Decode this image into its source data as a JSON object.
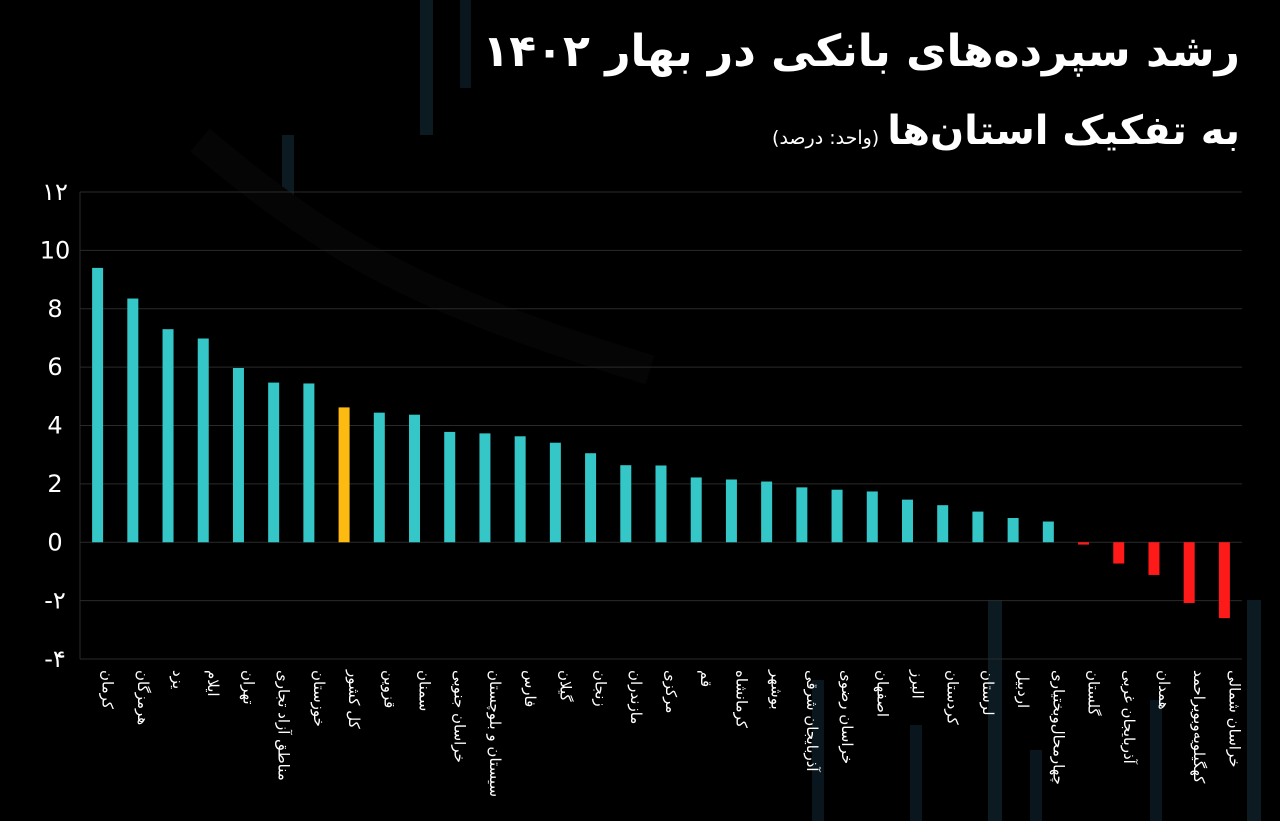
{
  "title": "رشد سپرده‌های بانکی در بهار ۱۴۰۲",
  "subtitle": "به تفکیک استان‌ها",
  "unit_note": "(واحد: درصد)",
  "colors": {
    "positive": "#35c7c7",
    "total": "#fdbb11",
    "negative": "#ff1a1a",
    "grid": "#2a2a2a",
    "text": "#ffffff"
  },
  "chart_data": {
    "type": "bar",
    "title": "رشد سپرده‌های بانکی در بهار ۱۴۰۲",
    "subtitle": "به تفکیک استان‌ها",
    "xlabel": "",
    "ylabel": "",
    "ylim": [
      -4,
      12
    ],
    "yticks": [
      {
        "value": 12,
        "label": "۱۲"
      },
      {
        "value": 10,
        "label": "10"
      },
      {
        "value": 8,
        "label": "8"
      },
      {
        "value": 6,
        "label": "6"
      },
      {
        "value": 4,
        "label": "4"
      },
      {
        "value": 2,
        "label": "2"
      },
      {
        "value": 0,
        "label": "0"
      },
      {
        "value": -2,
        "label": "-۲"
      },
      {
        "value": -4,
        "label": "-۴"
      }
    ],
    "grid": true,
    "legend": "none",
    "highlight_category": "کل کشور",
    "categories": [
      "کرمان",
      "هرمزگان",
      "یزد",
      "ایلام",
      "تهران",
      "مناطق آزاد تجاری",
      "خوزستان",
      "کل کشور",
      "قزوین",
      "سمنان",
      "خراسان جنوبی",
      "سیستان و بلوچستان",
      "فارس",
      "گیلان",
      "زنجان",
      "مازندران",
      "مرکزی",
      "قم",
      "کرمانشاه",
      "بوشهر",
      "آذربایجان شرقی",
      "خراسان رضوی",
      "اصفهان",
      "البرز",
      "کردستان",
      "لرستان",
      "اردبیل",
      "چهارمحال‌وبختیاری",
      "گلستان",
      "آذربایجان غربی",
      "همدان",
      "کهگیلویه‌وبویراحمد",
      "خراسان شمالی"
    ],
    "values": [
      9.4,
      8.35,
      7.3,
      6.98,
      5.97,
      5.47,
      5.44,
      4.62,
      4.44,
      4.37,
      3.78,
      3.73,
      3.63,
      3.41,
      3.05,
      2.64,
      2.63,
      2.22,
      2.15,
      2.08,
      1.88,
      1.8,
      1.74,
      1.46,
      1.27,
      1.05,
      0.83,
      0.71,
      -0.08,
      -0.73,
      -1.12,
      -2.08,
      -2.6
    ]
  }
}
